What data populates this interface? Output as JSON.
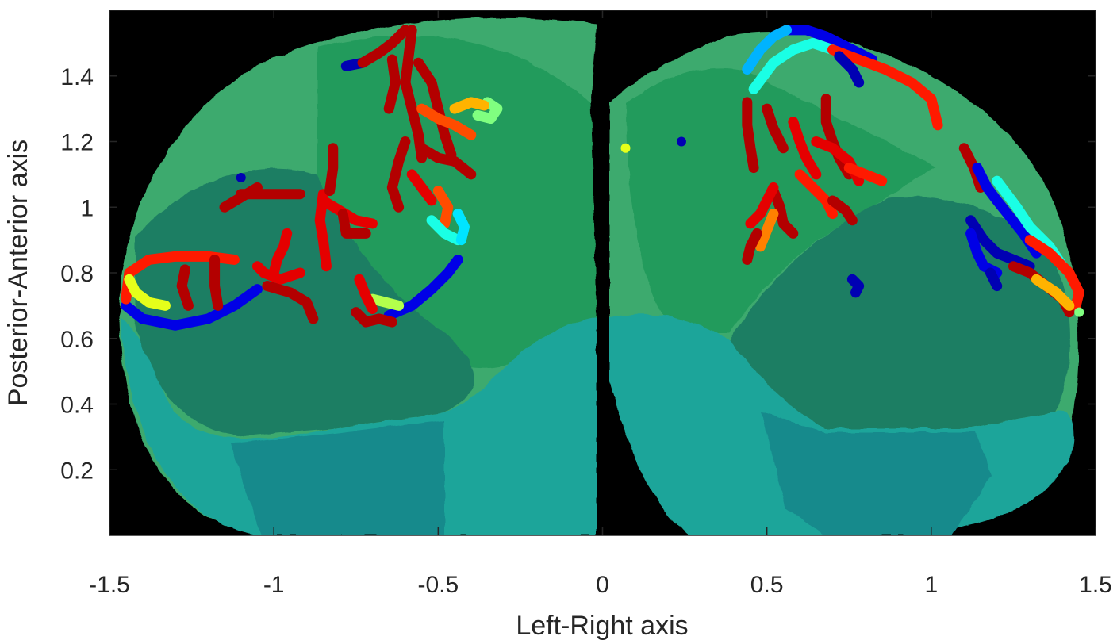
{
  "chart_data": {
    "type": "scatter",
    "xlabel": "Left-Right axis",
    "ylabel": "Posterior-Anterior axis",
    "xlim": [
      -1.5,
      1.5
    ],
    "ylim": [
      0,
      1.6
    ],
    "xticks": [
      -1.5,
      -1,
      -0.5,
      0,
      0.5,
      1,
      1.5
    ],
    "xtick_labels": [
      "-1.5",
      "-1",
      "-0.5",
      "0",
      "0.5",
      "1",
      "1.5"
    ],
    "yticks": [
      0.2,
      0.4,
      0.6,
      0.8,
      1,
      1.2,
      1.4
    ],
    "ytick_labels": [
      "0.2",
      "0.4",
      "0.6",
      "0.8",
      "1",
      "1.2",
      "1.4"
    ],
    "background_color": "#000000",
    "axes_color": "#262626",
    "colormap": "jet",
    "region_colors": {
      "outer_teal": "#1fa59a",
      "deep_teal": "#148a8c",
      "outer_green": "#3daa6e",
      "mid_green": "#249b5c",
      "inner_dark_green": "#1e7e63"
    },
    "trajectories": [
      {
        "color_value": 0.1,
        "points": [
          [
            -1.45,
            0.7
          ],
          [
            -1.4,
            0.66
          ],
          [
            -1.3,
            0.64
          ],
          [
            -1.2,
            0.66
          ],
          [
            -1.12,
            0.7
          ],
          [
            -1.05,
            0.75
          ]
        ]
      },
      {
        "color_value": 0.85,
        "points": [
          [
            -1.45,
            0.72
          ],
          [
            -1.44,
            0.8
          ],
          [
            -1.38,
            0.84
          ],
          [
            -1.3,
            0.85
          ],
          [
            -1.2,
            0.85
          ],
          [
            -1.12,
            0.84
          ]
        ]
      },
      {
        "color_value": 0.6,
        "points": [
          [
            -1.44,
            0.78
          ],
          [
            -1.42,
            0.74
          ],
          [
            -1.38,
            0.71
          ],
          [
            -1.33,
            0.7
          ]
        ]
      },
      {
        "color_value": 0.95,
        "points": [
          [
            -1.27,
            0.81
          ],
          [
            -1.28,
            0.76
          ],
          [
            -1.26,
            0.7
          ]
        ]
      },
      {
        "color_value": 0.95,
        "points": [
          [
            -1.18,
            0.84
          ],
          [
            -1.18,
            0.76
          ],
          [
            -1.17,
            0.7
          ]
        ]
      },
      {
        "color_value": 0.9,
        "points": [
          [
            -1.05,
            0.82
          ],
          [
            -1.03,
            0.8
          ],
          [
            -0.98,
            0.78
          ],
          [
            -0.92,
            0.8
          ]
        ]
      },
      {
        "color_value": 0.95,
        "points": [
          [
            -1.02,
            0.76
          ],
          [
            -0.95,
            0.74
          ],
          [
            -0.9,
            0.71
          ],
          [
            -0.88,
            0.66
          ]
        ]
      },
      {
        "color_value": 0.9,
        "points": [
          [
            -0.96,
            0.92
          ],
          [
            -0.97,
            0.88
          ],
          [
            -0.99,
            0.84
          ],
          [
            -1.0,
            0.8
          ]
        ]
      },
      {
        "color_value": 0.95,
        "points": [
          [
            -1.15,
            1.0
          ],
          [
            -1.1,
            1.03
          ],
          [
            -1.05,
            1.06
          ]
        ]
      },
      {
        "color_value": 0.95,
        "points": [
          [
            -1.1,
            1.04
          ],
          [
            -1.0,
            1.04
          ],
          [
            -0.92,
            1.04
          ]
        ]
      },
      {
        "color_value": 0.9,
        "points": [
          [
            -0.85,
            1.04
          ],
          [
            -0.86,
            0.96
          ],
          [
            -0.85,
            0.9
          ],
          [
            -0.84,
            0.82
          ]
        ]
      },
      {
        "color_value": 0.95,
        "points": [
          [
            -0.82,
            1.18
          ],
          [
            -0.82,
            1.12
          ],
          [
            -0.83,
            1.05
          ]
        ]
      },
      {
        "color_value": 0.9,
        "points": [
          [
            -0.85,
            1.02
          ],
          [
            -0.8,
            0.99
          ],
          [
            -0.75,
            0.96
          ],
          [
            -0.7,
            0.95
          ]
        ]
      },
      {
        "color_value": 0.95,
        "points": [
          [
            -0.79,
            0.98
          ],
          [
            -0.78,
            0.92
          ],
          [
            -0.72,
            0.92
          ]
        ]
      },
      {
        "color_value": 0.1,
        "points": [
          [
            -0.65,
            0.67
          ],
          [
            -0.58,
            0.7
          ],
          [
            -0.52,
            0.75
          ],
          [
            -0.47,
            0.8
          ],
          [
            -0.44,
            0.84
          ]
        ]
      },
      {
        "color_value": 0.55,
        "points": [
          [
            -0.7,
            0.72
          ],
          [
            -0.66,
            0.71
          ],
          [
            -0.62,
            0.7
          ]
        ]
      },
      {
        "color_value": 0.95,
        "points": [
          [
            -0.75,
            0.68
          ],
          [
            -0.72,
            0.65
          ],
          [
            -0.68,
            0.66
          ],
          [
            -0.64,
            0.65
          ]
        ]
      },
      {
        "color_value": 0.9,
        "points": [
          [
            -0.74,
            0.78
          ],
          [
            -0.72,
            0.73
          ],
          [
            -0.7,
            0.69
          ]
        ]
      },
      {
        "color_value": 0.05,
        "points": [
          [
            -0.78,
            1.43
          ],
          [
            -0.73,
            1.44
          ]
        ]
      },
      {
        "color_value": 0.95,
        "points": [
          [
            -0.73,
            1.44
          ],
          [
            -0.68,
            1.47
          ],
          [
            -0.64,
            1.5
          ],
          [
            -0.6,
            1.54
          ]
        ]
      },
      {
        "color_value": 0.95,
        "points": [
          [
            -0.58,
            1.54
          ],
          [
            -0.59,
            1.46
          ],
          [
            -0.6,
            1.38
          ],
          [
            -0.58,
            1.3
          ],
          [
            -0.56,
            1.22
          ],
          [
            -0.55,
            1.15
          ]
        ]
      },
      {
        "color_value": 0.95,
        "points": [
          [
            -0.64,
            1.45
          ],
          [
            -0.63,
            1.38
          ],
          [
            -0.65,
            1.3
          ]
        ]
      },
      {
        "color_value": 0.95,
        "points": [
          [
            -0.56,
            1.44
          ],
          [
            -0.52,
            1.38
          ],
          [
            -0.5,
            1.3
          ],
          [
            -0.48,
            1.22
          ],
          [
            -0.46,
            1.16
          ]
        ]
      },
      {
        "color_value": 0.8,
        "points": [
          [
            -0.55,
            1.3
          ],
          [
            -0.5,
            1.27
          ],
          [
            -0.45,
            1.25
          ],
          [
            -0.4,
            1.22
          ]
        ]
      },
      {
        "color_value": 0.5,
        "points": [
          [
            -0.38,
            1.28
          ],
          [
            -0.34,
            1.27
          ],
          [
            -0.32,
            1.3
          ],
          [
            -0.35,
            1.32
          ]
        ]
      },
      {
        "color_value": 0.7,
        "points": [
          [
            -0.45,
            1.3
          ],
          [
            -0.4,
            1.32
          ],
          [
            -0.36,
            1.31
          ]
        ]
      },
      {
        "color_value": 0.95,
        "points": [
          [
            -0.55,
            1.18
          ],
          [
            -0.5,
            1.15
          ],
          [
            -0.45,
            1.14
          ],
          [
            -0.4,
            1.1
          ]
        ]
      },
      {
        "color_value": 0.9,
        "points": [
          [
            -0.58,
            1.1
          ],
          [
            -0.55,
            1.06
          ],
          [
            -0.52,
            1.02
          ]
        ]
      },
      {
        "color_value": 0.8,
        "points": [
          [
            -0.5,
            1.05
          ],
          [
            -0.47,
            1.0
          ],
          [
            -0.48,
            0.95
          ]
        ]
      },
      {
        "color_value": 0.4,
        "points": [
          [
            -0.52,
            0.96
          ],
          [
            -0.48,
            0.92
          ],
          [
            -0.44,
            0.9
          ]
        ]
      },
      {
        "color_value": 0.35,
        "points": [
          [
            -0.44,
            0.98
          ],
          [
            -0.42,
            0.94
          ],
          [
            -0.43,
            0.9
          ]
        ]
      },
      {
        "color_value": 0.95,
        "points": [
          [
            -0.6,
            1.2
          ],
          [
            -0.62,
            1.14
          ],
          [
            -0.64,
            1.06
          ],
          [
            -0.62,
            1.0
          ]
        ]
      },
      {
        "color_value": 0.05,
        "points": [
          [
            -1.1,
            1.09
          ]
        ]
      },
      {
        "color_value": 0.1,
        "points": [
          [
            0.56,
            1.54
          ],
          [
            0.62,
            1.54
          ],
          [
            0.68,
            1.52
          ],
          [
            0.76,
            1.48
          ],
          [
            0.82,
            1.45
          ]
        ]
      },
      {
        "color_value": 0.3,
        "points": [
          [
            0.44,
            1.42
          ],
          [
            0.48,
            1.48
          ],
          [
            0.52,
            1.52
          ],
          [
            0.56,
            1.54
          ]
        ]
      },
      {
        "color_value": 0.4,
        "points": [
          [
            0.46,
            1.36
          ],
          [
            0.52,
            1.44
          ],
          [
            0.58,
            1.48
          ],
          [
            0.64,
            1.5
          ],
          [
            0.7,
            1.48
          ]
        ]
      },
      {
        "color_value": 0.85,
        "points": [
          [
            0.7,
            1.48
          ],
          [
            0.78,
            1.45
          ],
          [
            0.86,
            1.42
          ],
          [
            0.94,
            1.38
          ],
          [
            1.0,
            1.33
          ],
          [
            1.02,
            1.25
          ]
        ]
      },
      {
        "color_value": 0.05,
        "points": [
          [
            0.72,
            1.46
          ],
          [
            0.76,
            1.42
          ],
          [
            0.78,
            1.38
          ]
        ]
      },
      {
        "color_value": 0.95,
        "points": [
          [
            0.44,
            1.32
          ],
          [
            0.44,
            1.25
          ],
          [
            0.45,
            1.18
          ],
          [
            0.46,
            1.12
          ]
        ]
      },
      {
        "color_value": 0.95,
        "points": [
          [
            0.5,
            1.3
          ],
          [
            0.52,
            1.24
          ],
          [
            0.55,
            1.18
          ]
        ]
      },
      {
        "color_value": 0.9,
        "points": [
          [
            0.58,
            1.26
          ],
          [
            0.6,
            1.2
          ],
          [
            0.62,
            1.15
          ],
          [
            0.65,
            1.1
          ]
        ]
      },
      {
        "color_value": 0.95,
        "points": [
          [
            0.68,
            1.33
          ],
          [
            0.68,
            1.26
          ],
          [
            0.7,
            1.2
          ],
          [
            0.72,
            1.15
          ],
          [
            0.75,
            1.1
          ]
        ]
      },
      {
        "color_value": 0.9,
        "points": [
          [
            0.65,
            1.2
          ],
          [
            0.7,
            1.18
          ],
          [
            0.75,
            1.14
          ],
          [
            0.78,
            1.08
          ]
        ]
      },
      {
        "color_value": 0.85,
        "points": [
          [
            0.6,
            1.1
          ],
          [
            0.64,
            1.06
          ],
          [
            0.68,
            1.02
          ],
          [
            0.7,
            0.98
          ]
        ]
      },
      {
        "color_value": 0.95,
        "points": [
          [
            0.52,
            1.05
          ],
          [
            0.54,
            1.0
          ],
          [
            0.55,
            0.95
          ],
          [
            0.58,
            0.92
          ]
        ]
      },
      {
        "color_value": 0.9,
        "points": [
          [
            0.45,
            0.95
          ],
          [
            0.48,
            0.98
          ],
          [
            0.5,
            1.02
          ],
          [
            0.52,
            1.06
          ]
        ]
      },
      {
        "color_value": 0.75,
        "points": [
          [
            0.48,
            0.88
          ],
          [
            0.5,
            0.93
          ],
          [
            0.52,
            0.98
          ]
        ]
      },
      {
        "color_value": 0.95,
        "points": [
          [
            0.44,
            0.84
          ],
          [
            0.45,
            0.88
          ],
          [
            0.47,
            0.92
          ]
        ]
      },
      {
        "color_value": 0.95,
        "points": [
          [
            0.7,
            1.02
          ],
          [
            0.74,
            0.99
          ],
          [
            0.76,
            0.96
          ]
        ]
      },
      {
        "color_value": 0.85,
        "points": [
          [
            0.75,
            1.12
          ],
          [
            0.8,
            1.1
          ],
          [
            0.85,
            1.08
          ]
        ]
      },
      {
        "color_value": 0.05,
        "points": [
          [
            0.76,
            0.78
          ],
          [
            0.78,
            0.76
          ],
          [
            0.77,
            0.74
          ]
        ]
      },
      {
        "color_value": 0.6,
        "points": [
          [
            0.07,
            1.18
          ]
        ]
      },
      {
        "color_value": 0.05,
        "points": [
          [
            0.24,
            1.2
          ]
        ]
      },
      {
        "color_value": 0.95,
        "points": [
          [
            1.1,
            1.18
          ],
          [
            1.13,
            1.12
          ],
          [
            1.15,
            1.06
          ]
        ]
      },
      {
        "color_value": 0.1,
        "points": [
          [
            1.14,
            1.12
          ],
          [
            1.17,
            1.06
          ],
          [
            1.2,
            1.02
          ],
          [
            1.24,
            0.97
          ],
          [
            1.28,
            0.92
          ],
          [
            1.32,
            0.86
          ]
        ]
      },
      {
        "color_value": 0.4,
        "points": [
          [
            1.2,
            1.08
          ],
          [
            1.26,
            1.0
          ],
          [
            1.3,
            0.94
          ],
          [
            1.36,
            0.88
          ],
          [
            1.4,
            0.82
          ]
        ]
      },
      {
        "color_value": 0.05,
        "points": [
          [
            1.12,
            0.96
          ],
          [
            1.16,
            0.9
          ],
          [
            1.2,
            0.86
          ],
          [
            1.25,
            0.84
          ],
          [
            1.3,
            0.82
          ]
        ]
      },
      {
        "color_value": 0.1,
        "points": [
          [
            1.12,
            0.92
          ],
          [
            1.14,
            0.86
          ],
          [
            1.16,
            0.82
          ],
          [
            1.2,
            0.8
          ]
        ]
      },
      {
        "color_value": 0.05,
        "points": [
          [
            1.18,
            0.8
          ],
          [
            1.2,
            0.76
          ]
        ]
      },
      {
        "color_value": 0.85,
        "points": [
          [
            1.3,
            0.9
          ],
          [
            1.36,
            0.86
          ],
          [
            1.42,
            0.8
          ],
          [
            1.45,
            0.74
          ],
          [
            1.44,
            0.7
          ]
        ]
      },
      {
        "color_value": 0.95,
        "points": [
          [
            1.25,
            0.82
          ],
          [
            1.3,
            0.8
          ],
          [
            1.35,
            0.76
          ],
          [
            1.4,
            0.72
          ],
          [
            1.42,
            0.68
          ]
        ]
      },
      {
        "color_value": 0.7,
        "points": [
          [
            1.32,
            0.78
          ],
          [
            1.38,
            0.74
          ],
          [
            1.42,
            0.7
          ]
        ]
      },
      {
        "color_value": 0.5,
        "points": [
          [
            1.45,
            0.68
          ]
        ]
      }
    ]
  }
}
